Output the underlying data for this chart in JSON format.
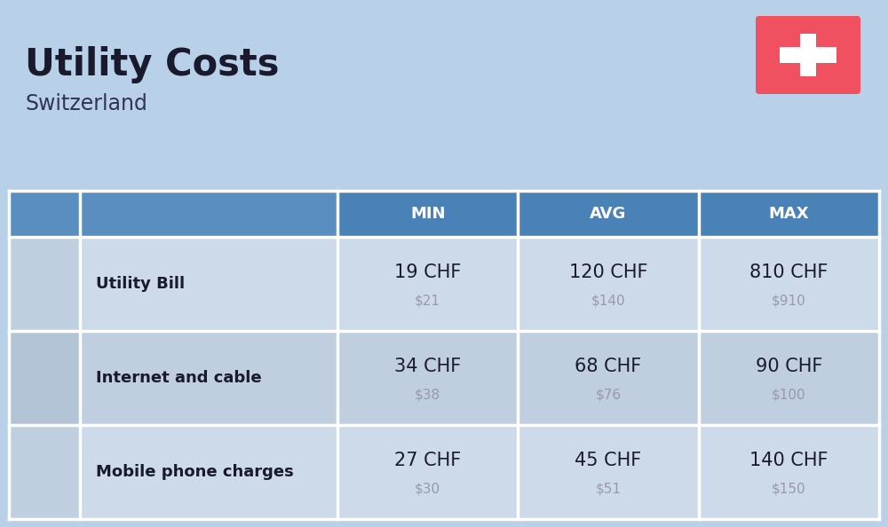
{
  "title": "Utility Costs",
  "subtitle": "Switzerland",
  "background_color": "#b8d0e8",
  "header_bg_color": "#4a82b8",
  "header_text_color": "#ffffff",
  "row_bg_light": "#ccdaea",
  "row_bg_dark": "#bfcfdf",
  "icon_col_bg_light": "#bfcfdf",
  "icon_col_bg_dark": "#b2c4d5",
  "label_col_bg_light": "#ccdaea",
  "label_col_bg_dark": "#bfcfdf",
  "header_icon_bg": "#5a8ec0",
  "header_label_bg": "#5a8ec0",
  "divider_color": "#ffffff",
  "columns": [
    "MIN",
    "AVG",
    "MAX"
  ],
  "rows": [
    {
      "label": "Utility Bill",
      "min_chf": "19 CHF",
      "min_usd": "$21",
      "avg_chf": "120 CHF",
      "avg_usd": "$140",
      "max_chf": "810 CHF",
      "max_usd": "$910"
    },
    {
      "label": "Internet and cable",
      "min_chf": "34 CHF",
      "min_usd": "$38",
      "avg_chf": "68 CHF",
      "avg_usd": "$76",
      "max_chf": "90 CHF",
      "max_usd": "$100"
    },
    {
      "label": "Mobile phone charges",
      "min_chf": "27 CHF",
      "min_usd": "$30",
      "avg_chf": "45 CHF",
      "avg_usd": "$51",
      "max_chf": "140 CHF",
      "max_usd": "$150"
    }
  ],
  "flag_bg": "#f05060",
  "flag_cross": "#ffffff",
  "title_fontsize": 30,
  "subtitle_fontsize": 17,
  "header_fontsize": 13,
  "label_fontsize": 13,
  "value_fontsize": 15,
  "usd_fontsize": 11,
  "title_color": "#1a1a2e",
  "subtitle_color": "#333355",
  "label_color": "#1a1a2e",
  "value_color": "#1a1a2e",
  "usd_color": "#9999aa"
}
